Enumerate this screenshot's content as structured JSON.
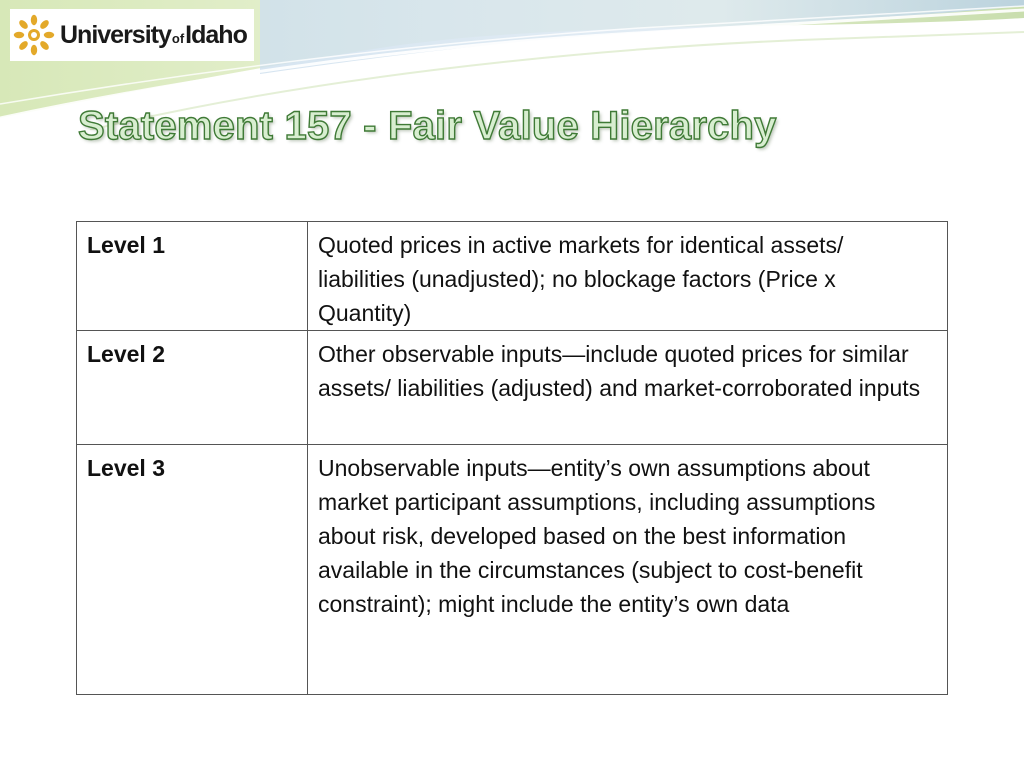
{
  "header": {
    "logo": {
      "icon": "sunburst-logo-icon",
      "word_1": "University",
      "word_of": "of",
      "word_2": "Idaho",
      "colors": {
        "sun": "#e3a92a",
        "text": "#1a1a1a"
      }
    }
  },
  "slide": {
    "title": "Statement 157 - Fair Value Hierarchy",
    "title_color": "#3f7a36"
  },
  "table": {
    "rows": [
      {
        "level": "Level 1",
        "description": "Quoted prices in active markets for identical assets/ liabilities (unadjusted); no blockage factors (Price x Quantity)"
      },
      {
        "level": "Level 2",
        "description": "Other observable inputs—include quoted prices for similar assets/ liabilities (adjusted) and market-corroborated inputs"
      },
      {
        "level": "Level 3",
        "description": "Unobservable inputs—entity’s own assumptions about market participant assumptions, including assumptions about risk, developed based on the best information available in the circumstances (subject to cost-benefit constraint); might include the entity’s own data"
      }
    ]
  }
}
